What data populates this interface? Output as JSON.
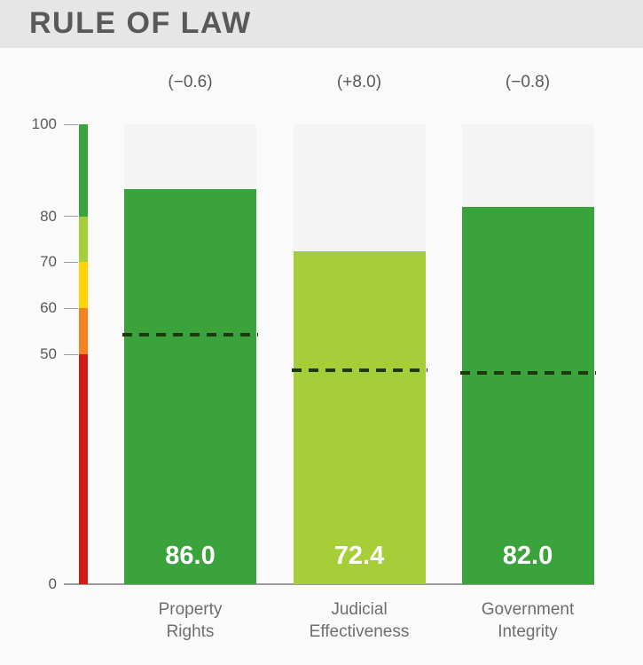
{
  "header": {
    "title": "RULE OF LAW"
  },
  "chart_data": {
    "type": "bar",
    "title": "RULE OF LAW",
    "categories": [
      "Property Rights",
      "Judicial Effectiveness",
      "Government Integrity"
    ],
    "category_lines": [
      [
        "Property",
        "Rights"
      ],
      [
        "Judicial",
        "Effectiveness"
      ],
      [
        "Government",
        "Integrity"
      ]
    ],
    "values": [
      86.0,
      72.4,
      82.0
    ],
    "value_labels": [
      "86.0",
      "72.4",
      "82.0"
    ],
    "change_labels": [
      "(−0.6)",
      "(+8.0)",
      "(−0.8)"
    ],
    "benchmark_values": [
      54.2,
      46.5,
      46.0
    ],
    "benchmark_line_style": "dashed",
    "bar_colors": [
      "#3aa33c",
      "#a6ce39",
      "#3aa33c"
    ],
    "ylim": [
      0,
      100
    ],
    "yticks": [
      0,
      50,
      60,
      70,
      80,
      100
    ],
    "grid": false,
    "legend": "none",
    "color_scale": [
      {
        "from": 80,
        "to": 100,
        "color": "#3aa33c"
      },
      {
        "from": 70,
        "to": 80,
        "color": "#a6ce39"
      },
      {
        "from": 60,
        "to": 70,
        "color": "#ffd400"
      },
      {
        "from": 50,
        "to": 60,
        "color": "#f58220"
      },
      {
        "from": 0,
        "to": 50,
        "color": "#d11b17"
      }
    ]
  },
  "colors": {
    "banner_bg": "#e6e6e6",
    "page_bg": "#fafafa",
    "track_bg": "#f4f4f4",
    "title_text": "#58595b",
    "axis_text": "#58595b",
    "category_text": "#6d6e71",
    "value_text": "#ffffff",
    "benchmark_line": "#1c3a0e",
    "axis_line": "#9b9b9b"
  }
}
